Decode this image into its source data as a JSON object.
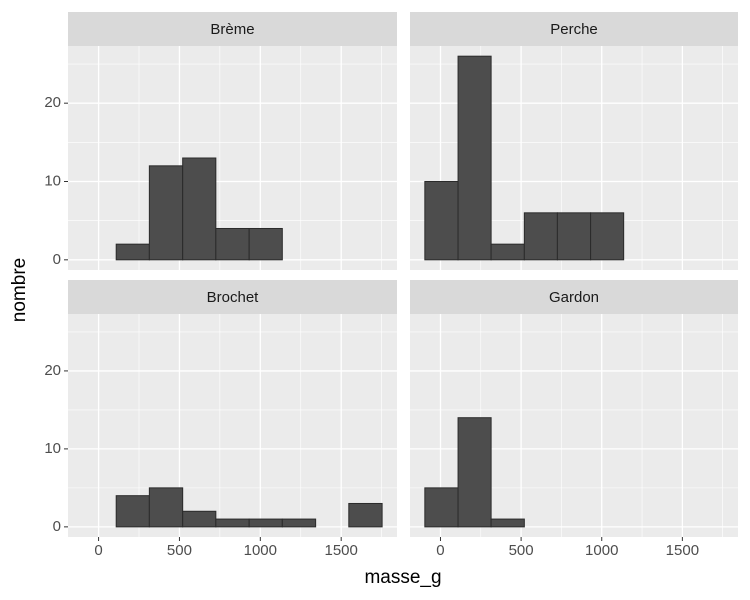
{
  "x_label": "masse_g",
  "y_label": "nombre",
  "chart_data": [
    {
      "type": "histogram",
      "title": "Brème",
      "bins": [
        -97,
        109,
        314,
        520,
        725,
        931,
        1136,
        1342,
        1547,
        1753
      ],
      "counts": [
        0,
        2,
        12,
        13,
        4,
        4,
        0,
        0,
        0
      ],
      "color": "#4d4d4d",
      "edgecolor": "#2b2b2b",
      "xlim": [
        -189,
        1845
      ],
      "ylim": [
        -1.3,
        27.3
      ],
      "xticks": [
        0,
        500,
        1000,
        1500
      ],
      "yticks": [
        0,
        10,
        20
      ],
      "grid": true
    },
    {
      "type": "histogram",
      "title": "Perche",
      "bins": [
        -97,
        109,
        314,
        520,
        725,
        931,
        1136,
        1342,
        1547,
        1753
      ],
      "counts": [
        10,
        26,
        2,
        6,
        6,
        6,
        0,
        0,
        0
      ],
      "color": "#4d4d4d",
      "edgecolor": "#2b2b2b",
      "xlim": [
        -189,
        1845
      ],
      "ylim": [
        -1.3,
        27.3
      ],
      "xticks": [
        0,
        500,
        1000,
        1500
      ],
      "yticks": [
        0,
        10,
        20
      ],
      "grid": true
    },
    {
      "type": "histogram",
      "title": "Brochet",
      "bins": [
        -97,
        109,
        314,
        520,
        725,
        931,
        1136,
        1342,
        1547,
        1753
      ],
      "counts": [
        0,
        4,
        5,
        2,
        1,
        1,
        1,
        0,
        3
      ],
      "color": "#4d4d4d",
      "edgecolor": "#2b2b2b",
      "xlim": [
        -189,
        1845
      ],
      "ylim": [
        -1.3,
        27.3
      ],
      "xticks": [
        0,
        500,
        1000,
        1500
      ],
      "yticks": [
        0,
        10,
        20
      ],
      "grid": true
    },
    {
      "type": "histogram",
      "title": "Gardon",
      "bins": [
        -97,
        109,
        314,
        520,
        725,
        931,
        1136,
        1342,
        1547,
        1753
      ],
      "counts": [
        5,
        14,
        1,
        0,
        0,
        0,
        0,
        0,
        0
      ],
      "color": "#4d4d4d",
      "edgecolor": "#2b2b2b",
      "xlim": [
        -189,
        1845
      ],
      "ylim": [
        -1.3,
        27.3
      ],
      "xticks": [
        0,
        500,
        1000,
        1500
      ],
      "yticks": [
        0,
        10,
        20
      ],
      "grid": true
    }
  ]
}
